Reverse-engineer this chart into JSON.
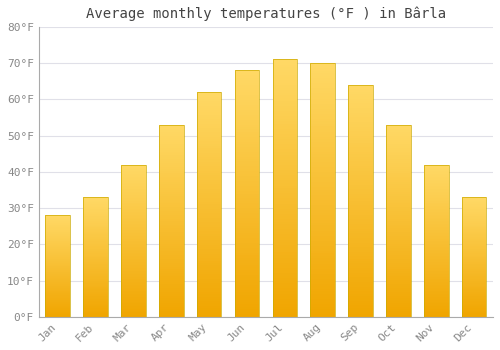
{
  "title": "Average monthly temperatures (°F ) in Bârla",
  "months": [
    "Jan",
    "Feb",
    "Mar",
    "Apr",
    "May",
    "Jun",
    "Jul",
    "Aug",
    "Sep",
    "Oct",
    "Nov",
    "Dec"
  ],
  "values": [
    28,
    33,
    42,
    53,
    62,
    68,
    71,
    70,
    64,
    53,
    42,
    33
  ],
  "bar_color_top": "#FFD966",
  "bar_color_bottom": "#F0A500",
  "bar_edge_color": "#CCAA00",
  "ylim": [
    0,
    80
  ],
  "yticks": [
    0,
    10,
    20,
    30,
    40,
    50,
    60,
    70,
    80
  ],
  "ytick_labels": [
    "0°F",
    "10°F",
    "20°F",
    "30°F",
    "40°F",
    "50°F",
    "60°F",
    "70°F",
    "80°F"
  ],
  "bg_color": "#FFFFFF",
  "grid_color": "#E0E0E8",
  "title_fontsize": 10,
  "tick_fontsize": 8,
  "tick_color": "#888888",
  "xlabel_rotation": 45
}
